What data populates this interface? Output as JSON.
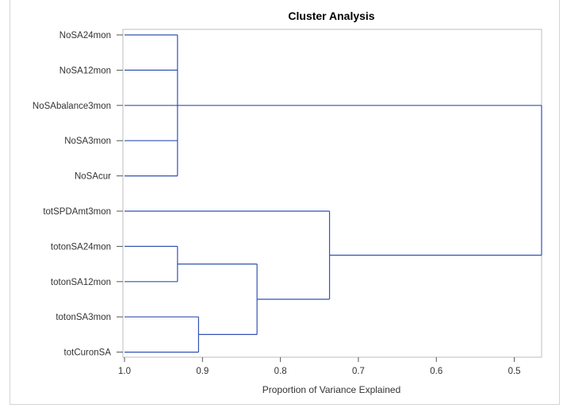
{
  "chart_data": {
    "type": "dendrogram",
    "title": "Cluster Analysis",
    "xlabel": "Proportion of Variance Explained",
    "xlim": [
      1.0,
      0.465
    ],
    "x_ticks": [
      {
        "value": 1.0,
        "label": "1.0"
      },
      {
        "value": 0.9,
        "label": "0.9"
      },
      {
        "value": 0.8,
        "label": "0.8"
      },
      {
        "value": 0.7,
        "label": "0.7"
      },
      {
        "value": 0.6,
        "label": "0.6"
      },
      {
        "value": 0.5,
        "label": "0.5"
      }
    ],
    "leaves": [
      "NoSA24mon",
      "NoSA12mon",
      "NoSAbalance3mon",
      "NoSA3mon",
      "NoSAcur",
      "totSPDAmt3mon",
      "totonSA24mon",
      "totonSA12mon",
      "totonSA3mon",
      "totCuronSA"
    ],
    "merges": [
      {
        "children": [
          "L0",
          "L1",
          "L2",
          "L3",
          "L4"
        ],
        "height": 0.932
      },
      {
        "children": [
          "L8",
          "L9"
        ],
        "height": 0.905
      },
      {
        "children": [
          "L6",
          "L7"
        ],
        "height": 0.932
      },
      {
        "children": [
          "M2",
          "M1"
        ],
        "height": 0.83
      },
      {
        "children": [
          "L5",
          "M3"
        ],
        "height": 0.737
      },
      {
        "children": [
          "M0",
          "M4"
        ],
        "height": 0.465
      }
    ],
    "line_color": "#3452b4",
    "grid": false
  }
}
